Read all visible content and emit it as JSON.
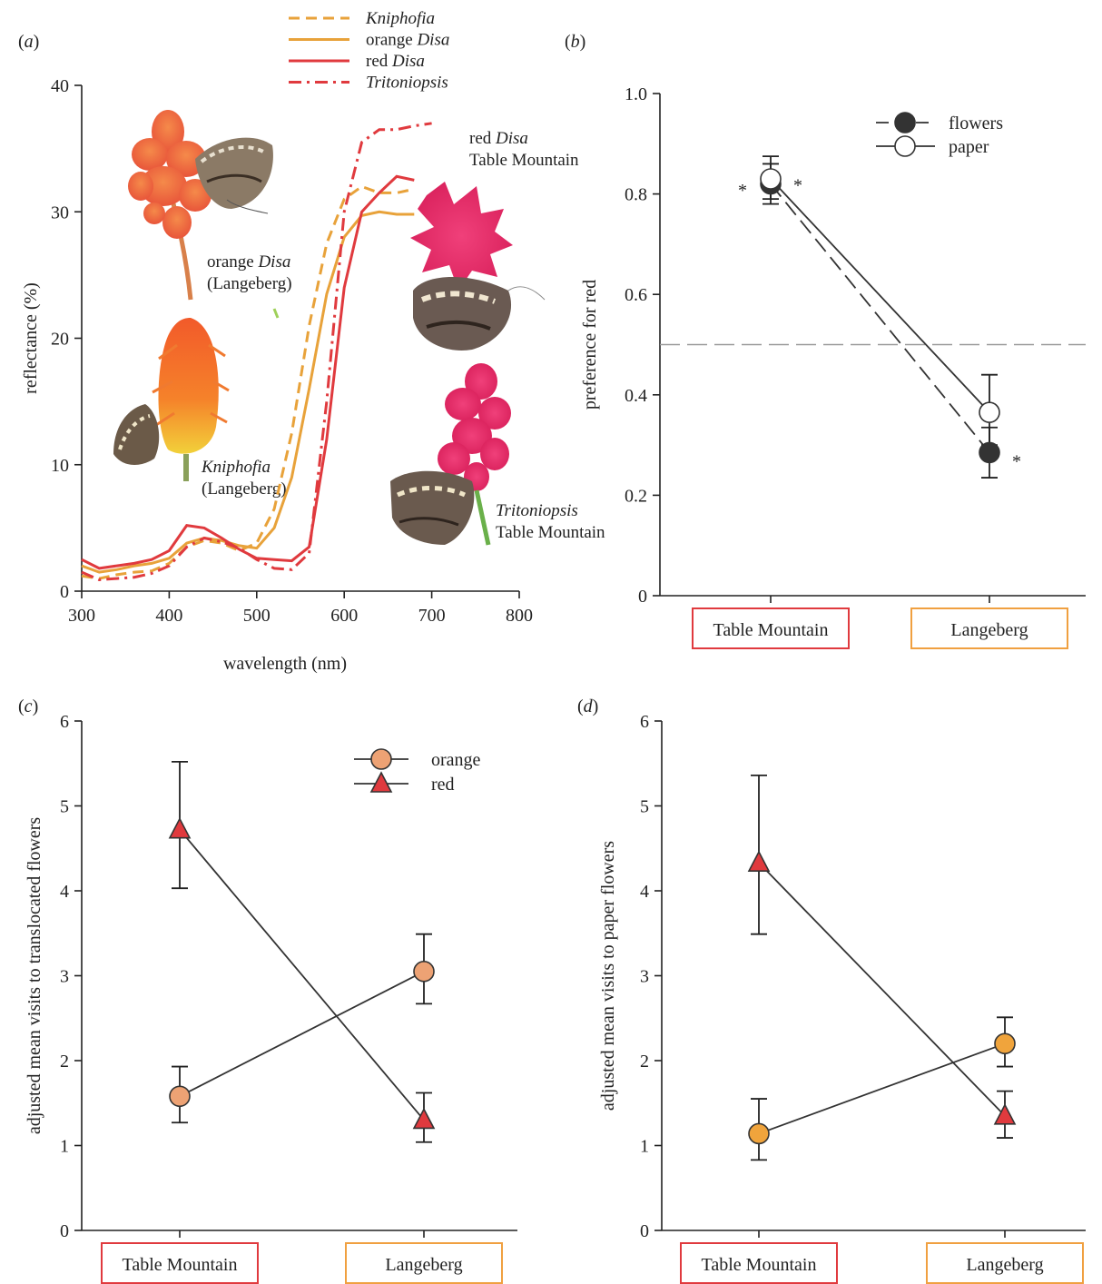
{
  "chart_data": [
    {
      "panel": "(a)",
      "type": "line",
      "xlabel": "wavelength (nm)",
      "ylabel": "reflectance (%)",
      "xlim": [
        300,
        800
      ],
      "ylim": [
        0,
        40
      ],
      "xticks": [
        300,
        400,
        500,
        600,
        700,
        800
      ],
      "yticks": [
        0,
        10,
        20,
        30,
        40
      ],
      "legend": {
        "placement": "top",
        "entries": [
          {
            "italic": "Kniphofia",
            "prefix": "",
            "style": "dashed",
            "color": "#e8a23a"
          },
          {
            "italic": "Disa",
            "prefix": "orange ",
            "style": "solid",
            "color": "#e8a23a"
          },
          {
            "italic": "Disa",
            "prefix": "red ",
            "style": "solid",
            "color": "#e03a3e"
          },
          {
            "italic": "Tritoniopsis",
            "prefix": "",
            "style": "dashdot",
            "color": "#e03a3e"
          }
        ]
      },
      "series": [
        {
          "legend_index": 0,
          "x": [
            300,
            320,
            340,
            360,
            380,
            400,
            420,
            440,
            460,
            480,
            500,
            520,
            540,
            560,
            580,
            600,
            620,
            640,
            660,
            680
          ],
          "y": [
            1.2,
            1.0,
            1.3,
            1.5,
            1.6,
            2.2,
            3.5,
            4.0,
            3.8,
            3.2,
            3.8,
            6.5,
            12.5,
            21.0,
            27.5,
            31.0,
            32.0,
            31.5,
            31.5,
            31.8
          ]
        },
        {
          "legend_index": 1,
          "x": [
            300,
            320,
            340,
            360,
            380,
            400,
            420,
            440,
            460,
            480,
            500,
            520,
            540,
            560,
            580,
            600,
            620,
            640,
            660,
            680
          ],
          "y": [
            2.0,
            1.5,
            1.7,
            2.0,
            2.2,
            2.6,
            3.8,
            4.2,
            4.0,
            3.6,
            3.4,
            5.0,
            9.0,
            16.0,
            23.5,
            28.0,
            29.7,
            30.0,
            29.8,
            29.8
          ]
        },
        {
          "legend_index": 2,
          "x": [
            300,
            320,
            340,
            360,
            380,
            400,
            420,
            440,
            460,
            480,
            500,
            520,
            540,
            560,
            580,
            600,
            620,
            640,
            660,
            680
          ],
          "y": [
            2.5,
            1.8,
            2.0,
            2.2,
            2.5,
            3.2,
            5.2,
            5.0,
            4.2,
            3.3,
            2.6,
            2.5,
            2.4,
            3.5,
            12.0,
            24.0,
            30.0,
            31.5,
            32.8,
            32.5
          ]
        },
        {
          "legend_index": 3,
          "x": [
            300,
            320,
            340,
            360,
            380,
            400,
            420,
            440,
            460,
            480,
            500,
            520,
            540,
            560,
            580,
            600,
            620,
            640,
            660,
            680,
            700
          ],
          "y": [
            1.5,
            0.9,
            1.0,
            1.1,
            1.4,
            2.0,
            3.5,
            4.2,
            3.9,
            3.4,
            2.5,
            1.8,
            1.7,
            3.0,
            15.0,
            30.0,
            35.5,
            36.5,
            36.5,
            36.8,
            37.0
          ]
        }
      ],
      "image_labels": [
        {
          "italic": "Disa",
          "line1_prefix": "orange ",
          "line2": "(Langeberg)"
        },
        {
          "italic": "Kniphofia",
          "line1_prefix": "",
          "line2": "(Langeberg)"
        },
        {
          "italic": "Disa",
          "line1_prefix": "red ",
          "line2": "Table Mountain"
        },
        {
          "italic": "Tritoniopsis",
          "line1_prefix": "",
          "line2": "Table Mountain"
        }
      ]
    },
    {
      "panel": "(b)",
      "type": "line",
      "ylabel": "preference for red",
      "ylim": [
        0,
        1.0
      ],
      "yticks": [
        "0",
        "0.2",
        "0.4",
        "0.6",
        "0.8",
        "1.0"
      ],
      "categories": [
        "Table Mountain",
        "Langeberg"
      ],
      "category_colors": [
        "#e03a3e",
        "#f0a040"
      ],
      "reference_line": 0.5,
      "legend": {
        "placement": "top-right"
      },
      "series": [
        {
          "name": "flowers",
          "marker": "filled-circle",
          "line": "dashed",
          "values": [
            0.82,
            0.285
          ],
          "err_low": [
            0.78,
            0.235
          ],
          "err_high": [
            0.86,
            0.335
          ]
        },
        {
          "name": "paper",
          "marker": "open-circle",
          "line": "solid",
          "values": [
            0.83,
            0.365
          ],
          "err_low": [
            0.79,
            0.3
          ],
          "err_high": [
            0.875,
            0.44
          ]
        }
      ],
      "annotations": [
        "*",
        "*",
        "*"
      ]
    },
    {
      "panel": "(c)",
      "type": "line",
      "ylabel": "adjusted mean visits to translocated flowers",
      "ylim": [
        0,
        6
      ],
      "yticks": [
        "0",
        "1",
        "2",
        "3",
        "4",
        "5",
        "6"
      ],
      "categories": [
        "Table Mountain",
        "Langeberg"
      ],
      "category_colors": [
        "#e03a3e",
        "#f0a040"
      ],
      "legend": {
        "placement": "top-right"
      },
      "series": [
        {
          "name": "orange",
          "marker": "circle",
          "color": "#eda274",
          "values": [
            1.58,
            3.05
          ],
          "err_low": [
            1.27,
            2.67
          ],
          "err_high": [
            1.93,
            3.49
          ]
        },
        {
          "name": "red",
          "marker": "triangle",
          "color": "#e03a3e",
          "values": [
            4.72,
            1.3
          ],
          "err_low": [
            4.03,
            1.04
          ],
          "err_high": [
            5.52,
            1.62
          ]
        }
      ]
    },
    {
      "panel": "(d)",
      "type": "line",
      "ylabel": "adjusted mean visits to paper flowers",
      "ylim": [
        0,
        6
      ],
      "yticks": [
        "0",
        "1",
        "2",
        "3",
        "4",
        "5",
        "6"
      ],
      "categories": [
        "Table Mountain",
        "Langeberg"
      ],
      "category_colors": [
        "#e03a3e",
        "#f0a040"
      ],
      "series": [
        {
          "name": "orange",
          "marker": "circle",
          "color": "#f0a43c",
          "values": [
            1.14,
            2.2
          ],
          "err_low": [
            0.83,
            1.93
          ],
          "err_high": [
            1.55,
            2.51
          ]
        },
        {
          "name": "red",
          "marker": "triangle",
          "color": "#e03a3e",
          "values": [
            4.33,
            1.35
          ],
          "err_low": [
            3.49,
            1.09
          ],
          "err_high": [
            5.36,
            1.64
          ]
        }
      ]
    }
  ]
}
